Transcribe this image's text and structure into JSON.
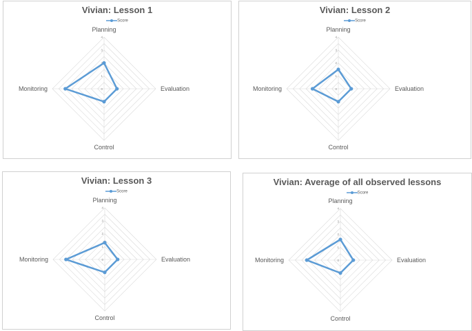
{
  "chart_data": [
    {
      "type": "radar",
      "title": "Vivian: Lesson 1",
      "legend": [
        "Score"
      ],
      "legend_position": "top",
      "categories": [
        "Planning",
        "Evaluation",
        "Control",
        "Monitoring"
      ],
      "ticks": [
        "0",
        "1",
        "2",
        "3",
        "4"
      ],
      "rlim": [
        0,
        4
      ],
      "series": [
        {
          "name": "Score",
          "values": [
            2,
            1,
            1,
            3
          ]
        }
      ],
      "colors": {
        "series": "#5b9bd5",
        "grid": "#d9d9d9",
        "text": "#595959"
      }
    },
    {
      "type": "radar",
      "title": "Vivian: Lesson 2",
      "legend": [
        "Score"
      ],
      "legend_position": "top",
      "categories": [
        "Planning",
        "Evaluation",
        "Control",
        "Monitoring"
      ],
      "ticks": [
        "0",
        "1",
        "2",
        "3",
        "4"
      ],
      "rlim": [
        0,
        4
      ],
      "series": [
        {
          "name": "Score",
          "values": [
            1.5,
            1,
            1,
            2
          ]
        }
      ],
      "colors": {
        "series": "#5b9bd5",
        "grid": "#d9d9d9",
        "text": "#595959"
      }
    },
    {
      "type": "radar",
      "title": "Vivian: Lesson 3",
      "legend": [
        "Score"
      ],
      "legend_position": "top",
      "categories": [
        "Planning",
        "Evaluation",
        "Control",
        "Monitoring"
      ],
      "ticks": [
        "0",
        "1",
        "2",
        "3",
        "4"
      ],
      "rlim": [
        0,
        4
      ],
      "series": [
        {
          "name": "Score",
          "values": [
            1.3,
            1,
            1,
            3
          ]
        }
      ],
      "colors": {
        "series": "#5b9bd5",
        "grid": "#d9d9d9",
        "text": "#595959"
      }
    },
    {
      "type": "radar",
      "title": "Vivian: Average of all observed lessons",
      "legend": [
        "Score"
      ],
      "legend_position": "top",
      "categories": [
        "Planning",
        "Evaluation",
        "Control",
        "Monitoring"
      ],
      "ticks": [
        "0",
        "1",
        "2",
        "3",
        "4"
      ],
      "rlim": [
        0,
        4
      ],
      "series": [
        {
          "name": "Score",
          "values": [
            1.6,
            1,
            1,
            2.6
          ]
        }
      ],
      "colors": {
        "series": "#5b9bd5",
        "grid": "#d9d9d9",
        "text": "#595959"
      }
    }
  ]
}
